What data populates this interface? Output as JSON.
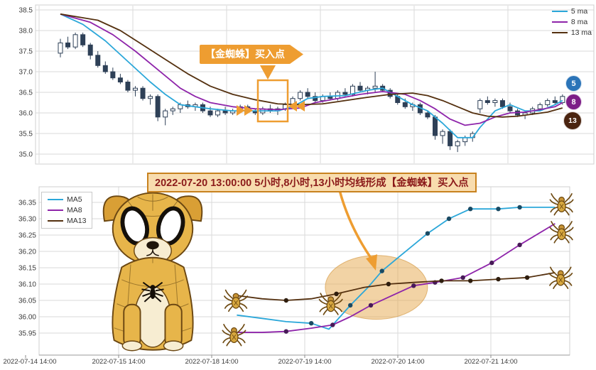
{
  "colors": {
    "ma5": "#2ba7d9",
    "ma8": "#8e24aa",
    "ma13": "#54300f",
    "candle": "#2e4057",
    "accent_orange": "#ee9d31",
    "highlight_fill": "#e6a84c",
    "grid": "#dadada",
    "axis_text": "#3c3c3c",
    "title_text": "#8b1a1a",
    "title_bg": "#f8dcae",
    "title_border": "#c8821f",
    "badge5": "#2b74b8",
    "badge8": "#7c1d87",
    "badge13": "#4a2410"
  },
  "annotations": {
    "top_buy_point": "【金蜘蛛】买入点",
    "bottom_title": "2022-07-20 13:00:00 5小时,8小时,13小时均线形成【金蜘蛛】买入点"
  },
  "badges": [
    {
      "label": "5",
      "color_key": "badge5"
    },
    {
      "label": "8",
      "color_key": "badge8"
    },
    {
      "label": "13",
      "color_key": "badge13"
    }
  ],
  "chart_data": [
    {
      "type": "candlestick",
      "title": "",
      "xlabel": "",
      "ylabel": "",
      "ylim": [
        34.9,
        38.6
      ],
      "y_ticks": [
        38.5,
        38.0,
        37.5,
        37.0,
        36.5,
        36.0,
        35.5,
        35.0
      ],
      "grid": true,
      "legend_position": "top-right",
      "candles": [
        [
          37.45,
          37.8,
          37.35,
          37.7
        ],
        [
          37.7,
          37.85,
          37.55,
          37.6
        ],
        [
          37.6,
          37.95,
          37.55,
          37.9
        ],
        [
          37.9,
          37.95,
          37.6,
          37.65
        ],
        [
          37.65,
          37.7,
          37.3,
          37.4
        ],
        [
          37.4,
          37.5,
          37.1,
          37.15
        ],
        [
          37.15,
          37.25,
          36.95,
          37.0
        ],
        [
          37.0,
          37.1,
          36.8,
          36.85
        ],
        [
          36.85,
          36.95,
          36.7,
          36.75
        ],
        [
          36.75,
          36.8,
          36.5,
          36.55
        ],
        [
          36.55,
          36.65,
          36.4,
          36.6
        ],
        [
          36.6,
          36.65,
          36.3,
          36.35
        ],
        [
          36.35,
          36.45,
          36.2,
          36.4
        ],
        [
          36.4,
          36.45,
          35.8,
          35.9
        ],
        [
          35.9,
          36.1,
          35.7,
          36.05
        ],
        [
          36.05,
          36.15,
          35.95,
          36.1
        ],
        [
          36.1,
          36.25,
          36.0,
          36.2
        ],
        [
          36.2,
          36.3,
          36.1,
          36.15
        ],
        [
          36.15,
          36.25,
          36.05,
          36.2
        ],
        [
          36.2,
          36.25,
          36.0,
          36.05
        ],
        [
          36.05,
          36.15,
          35.9,
          35.95
        ],
        [
          35.95,
          36.1,
          35.9,
          36.05
        ],
        [
          36.05,
          36.15,
          35.95,
          36.0
        ],
        [
          36.0,
          36.1,
          35.95,
          36.05
        ],
        [
          36.05,
          36.2,
          36.0,
          36.15
        ],
        [
          36.15,
          36.2,
          36.0,
          36.05
        ],
        [
          36.05,
          36.1,
          35.95,
          36.0
        ],
        [
          36.0,
          36.15,
          35.95,
          36.1
        ],
        [
          36.1,
          36.2,
          36.0,
          36.05
        ],
        [
          36.05,
          36.15,
          35.95,
          36.1
        ],
        [
          36.1,
          36.25,
          36.05,
          36.2
        ],
        [
          36.2,
          36.4,
          36.15,
          36.35
        ],
        [
          36.35,
          36.55,
          36.3,
          36.5
        ],
        [
          36.5,
          36.6,
          36.35,
          36.4
        ],
        [
          36.4,
          36.5,
          36.25,
          36.3
        ],
        [
          36.3,
          36.45,
          36.25,
          36.4
        ],
        [
          36.4,
          36.5,
          36.3,
          36.35
        ],
        [
          36.35,
          36.55,
          36.3,
          36.5
        ],
        [
          36.5,
          36.6,
          36.4,
          36.45
        ],
        [
          36.45,
          36.7,
          36.4,
          36.65
        ],
        [
          36.65,
          36.75,
          36.5,
          36.55
        ],
        [
          36.55,
          36.65,
          36.45,
          36.6
        ],
        [
          36.6,
          37.0,
          36.5,
          36.65
        ],
        [
          36.65,
          36.7,
          36.5,
          36.55
        ],
        [
          36.55,
          36.6,
          36.35,
          36.4
        ],
        [
          36.4,
          36.45,
          36.2,
          36.25
        ],
        [
          36.25,
          36.35,
          36.1,
          36.15
        ],
        [
          36.15,
          36.25,
          36.05,
          36.2
        ],
        [
          36.2,
          36.25,
          35.95,
          36.0
        ],
        [
          36.0,
          36.05,
          35.85,
          35.9
        ],
        [
          35.9,
          35.95,
          35.35,
          35.45
        ],
        [
          35.45,
          35.6,
          35.25,
          35.55
        ],
        [
          35.55,
          35.6,
          35.1,
          35.2
        ],
        [
          35.2,
          35.35,
          35.05,
          35.3
        ],
        [
          35.3,
          35.45,
          35.2,
          35.4
        ],
        [
          35.4,
          35.55,
          35.3,
          35.5
        ],
        [
          36.1,
          36.35,
          36.0,
          36.3
        ],
        [
          36.3,
          36.4,
          36.2,
          36.25
        ],
        [
          36.25,
          36.35,
          36.15,
          36.3
        ],
        [
          36.3,
          36.35,
          36.1,
          36.15
        ],
        [
          36.15,
          36.25,
          36.0,
          36.05
        ],
        [
          36.05,
          36.1,
          35.9,
          35.95
        ],
        [
          35.95,
          36.05,
          35.85,
          36.0
        ],
        [
          36.0,
          36.15,
          35.95,
          36.1
        ],
        [
          36.1,
          36.25,
          36.05,
          36.2
        ],
        [
          36.2,
          36.35,
          36.15,
          36.3
        ],
        [
          36.3,
          36.4,
          36.2,
          36.25
        ],
        [
          36.25,
          36.45,
          36.2,
          36.4
        ]
      ],
      "series": [
        {
          "name": "5 ma",
          "color_key": "ma5",
          "points": [
            [
              0,
              38.4
            ],
            [
              3,
              38.15
            ],
            [
              6,
              37.75
            ],
            [
              9,
              37.25
            ],
            [
              12,
              36.75
            ],
            [
              14,
              36.45
            ],
            [
              16,
              36.2
            ],
            [
              18,
              36.15
            ],
            [
              20,
              36.1
            ],
            [
              23,
              36.05
            ],
            [
              26,
              36.05
            ],
            [
              29,
              36.05
            ],
            [
              31,
              36.15
            ],
            [
              33,
              36.35
            ],
            [
              35,
              36.4
            ],
            [
              38,
              36.42
            ],
            [
              41,
              36.55
            ],
            [
              43,
              36.6
            ],
            [
              45,
              36.4
            ],
            [
              47,
              36.2
            ],
            [
              49,
              36.05
            ],
            [
              51,
              35.75
            ],
            [
              53,
              35.4
            ],
            [
              55,
              35.4
            ],
            [
              56,
              35.65
            ],
            [
              58,
              36.05
            ],
            [
              60,
              36.2
            ],
            [
              62,
              36.05
            ],
            [
              64,
              36.05
            ],
            [
              66,
              36.2
            ],
            [
              67,
              36.3
            ]
          ]
        },
        {
          "name": "8 ma",
          "color_key": "ma8",
          "points": [
            [
              0,
              38.4
            ],
            [
              4,
              38.2
            ],
            [
              7,
              37.9
            ],
            [
              10,
              37.5
            ],
            [
              13,
              37.05
            ],
            [
              16,
              36.6
            ],
            [
              18,
              36.4
            ],
            [
              20,
              36.25
            ],
            [
              23,
              36.15
            ],
            [
              26,
              36.1
            ],
            [
              29,
              36.08
            ],
            [
              32,
              36.12
            ],
            [
              34,
              36.25
            ],
            [
              37,
              36.35
            ],
            [
              40,
              36.45
            ],
            [
              43,
              36.52
            ],
            [
              46,
              36.45
            ],
            [
              48,
              36.3
            ],
            [
              50,
              36.1
            ],
            [
              52,
              35.85
            ],
            [
              54,
              35.7
            ],
            [
              56,
              35.75
            ],
            [
              58,
              35.9
            ],
            [
              60,
              36.0
            ],
            [
              62,
              36.02
            ],
            [
              64,
              36.08
            ],
            [
              66,
              36.15
            ],
            [
              67,
              36.25
            ]
          ]
        },
        {
          "name": "13 ma",
          "color_key": "ma13",
          "points": [
            [
              0,
              38.4
            ],
            [
              5,
              38.25
            ],
            [
              8,
              38.0
            ],
            [
              11,
              37.65
            ],
            [
              14,
              37.3
            ],
            [
              17,
              36.95
            ],
            [
              20,
              36.65
            ],
            [
              23,
              36.45
            ],
            [
              26,
              36.32
            ],
            [
              29,
              36.22
            ],
            [
              32,
              36.2
            ],
            [
              35,
              36.22
            ],
            [
              38,
              36.3
            ],
            [
              41,
              36.38
            ],
            [
              44,
              36.45
            ],
            [
              47,
              36.48
            ],
            [
              49,
              36.42
            ],
            [
              51,
              36.3
            ],
            [
              53,
              36.15
            ],
            [
              55,
              36.0
            ],
            [
              57,
              35.92
            ],
            [
              59,
              35.9
            ],
            [
              61,
              35.92
            ],
            [
              63,
              35.97
            ],
            [
              65,
              36.02
            ],
            [
              67,
              36.12
            ]
          ]
        }
      ]
    },
    {
      "type": "line",
      "title": "2022-07-20 13:00:00 5小时,8小时,13小时均线形成【金蜘蛛】买入点",
      "xlabel": "",
      "ylabel": "",
      "ylim": [
        35.92,
        36.38
      ],
      "y_ticks": [
        36.35,
        36.3,
        36.25,
        36.2,
        36.15,
        36.1,
        36.05,
        36.0,
        35.95
      ],
      "x_tick_labels": [
        "2022-07-14 14:00",
        "2022-07-15 14:00",
        "2022-07-18 14:00",
        "2022-07-19 14:00",
        "2022-07-20 14:00",
        "2022-07-21 14:00"
      ],
      "grid": true,
      "legend_position": "top-left",
      "series": [
        {
          "name": "MA5",
          "color_key": "ma5",
          "marker_color": "#1a4a63",
          "points": [
            [
              2.27,
              36.005
            ],
            [
              2.54,
              35.995
            ],
            [
              2.8,
              35.985
            ],
            [
              3.07,
              35.98
            ],
            [
              3.26,
              35.962
            ],
            [
              3.49,
              36.035
            ],
            [
              3.68,
              36.09
            ],
            [
              3.83,
              36.14
            ],
            [
              4.02,
              36.185
            ],
            [
              4.32,
              36.255
            ],
            [
              4.55,
              36.3
            ],
            [
              4.78,
              36.33
            ],
            [
              5.08,
              36.33
            ],
            [
              5.31,
              36.335
            ],
            [
              5.69,
              36.335
            ]
          ],
          "markers": [
            3,
            5,
            7,
            9,
            10,
            11,
            12,
            13
          ]
        },
        {
          "name": "MA8",
          "color_key": "ma8",
          "marker_color": "#471a57",
          "points": [
            [
              2.27,
              35.952
            ],
            [
              2.54,
              35.952
            ],
            [
              2.8,
              35.955
            ],
            [
              3.07,
              35.965
            ],
            [
              3.3,
              35.975
            ],
            [
              3.49,
              36.0
            ],
            [
              3.71,
              36.035
            ],
            [
              3.94,
              36.065
            ],
            [
              4.17,
              36.095
            ],
            [
              4.4,
              36.105
            ],
            [
              4.7,
              36.12
            ],
            [
              5.01,
              36.165
            ],
            [
              5.31,
              36.22
            ],
            [
              5.69,
              36.285
            ]
          ],
          "markers": [
            2,
            4,
            6,
            8,
            9,
            10,
            11,
            12
          ]
        },
        {
          "name": "MA13",
          "color_key": "ma13",
          "marker_color": "#2e1d0e",
          "points": [
            [
              2.27,
              36.065
            ],
            [
              2.54,
              36.055
            ],
            [
              2.8,
              36.05
            ],
            [
              3.07,
              36.055
            ],
            [
              3.34,
              36.07
            ],
            [
              3.64,
              36.09
            ],
            [
              3.9,
              36.1
            ],
            [
              4.17,
              36.105
            ],
            [
              4.47,
              36.11
            ],
            [
              4.78,
              36.11
            ],
            [
              5.08,
              36.115
            ],
            [
              5.39,
              36.12
            ],
            [
              5.69,
              36.135
            ]
          ],
          "markers": [
            2,
            4,
            6,
            8,
            9,
            10,
            11
          ]
        }
      ],
      "highlight": {
        "center": [
          3.77,
          36.09
        ]
      },
      "spiders": [
        [
          2.26,
          36.05
        ],
        [
          2.24,
          35.945
        ],
        [
          3.28,
          36.04
        ],
        [
          5.76,
          36.345
        ],
        [
          5.76,
          36.26
        ],
        [
          5.75,
          36.12
        ]
      ]
    }
  ]
}
